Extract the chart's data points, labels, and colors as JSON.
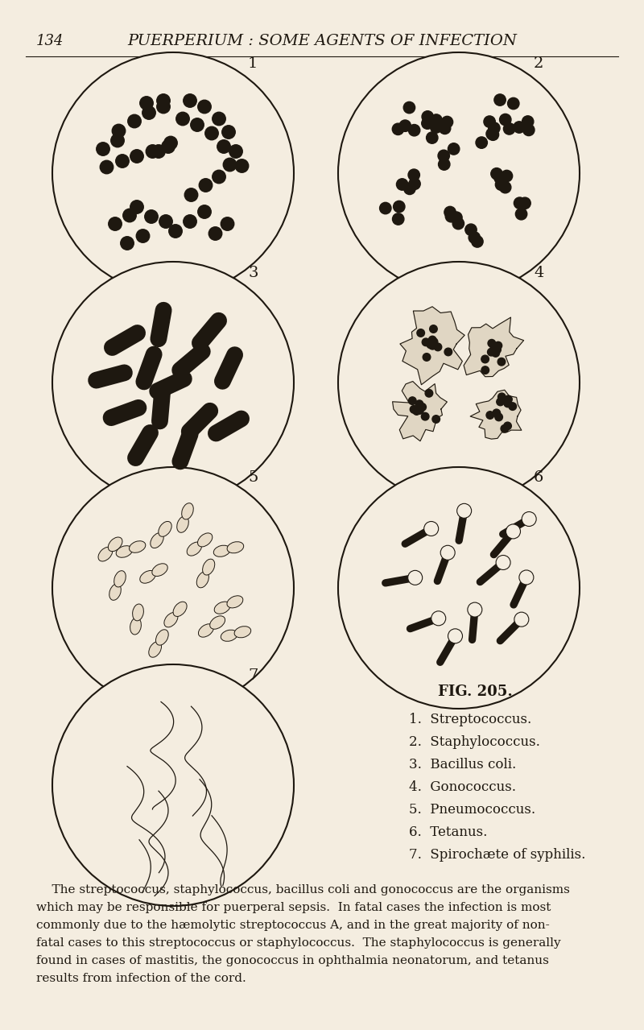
{
  "background_color": "#f4ede0",
  "page_number": "134",
  "header_title": "PUERPERIUM : SOME AGENTS OF INFECTION",
  "fig_caption_title": "FIG. 205.",
  "fig_caption_items": [
    "1.  Streptococcus.",
    "2.  Staphylococcus.",
    "3.  Bacillus coli.",
    "4.  Gonococcus.",
    "5.  Pneumococcus.",
    "6.  Tetanus.",
    "7.  Spirochæte of syphilis."
  ],
  "body_text_lines": [
    "    The streptococcus, staphylococcus, bacillus coli and gonococcus are the organisms",
    "which may be responsible for puerperal sepsis.  In fatal cases the infection is most",
    "commonly due to the hæmolytic streptococcus A, and in the great majority of non-",
    "fatal cases to this streptococcus or staphylococcus.  The staphylococcus is generally",
    "found in cases of mastitis, the gonococcus in ophthalmia neonatorum, and tetanus",
    "results from infection of the cord."
  ],
  "text_color": "#1e1810",
  "circle_color": "#1e1810",
  "circle_lw": 1.5,
  "circle_positions": [
    [
      215,
      215,
      150,
      "1"
    ],
    [
      570,
      215,
      150,
      "2"
    ],
    [
      215,
      475,
      150,
      "3"
    ],
    [
      570,
      475,
      150,
      "4"
    ],
    [
      215,
      730,
      150,
      "5"
    ],
    [
      570,
      730,
      150,
      "6"
    ],
    [
      215,
      975,
      150,
      "7"
    ]
  ]
}
